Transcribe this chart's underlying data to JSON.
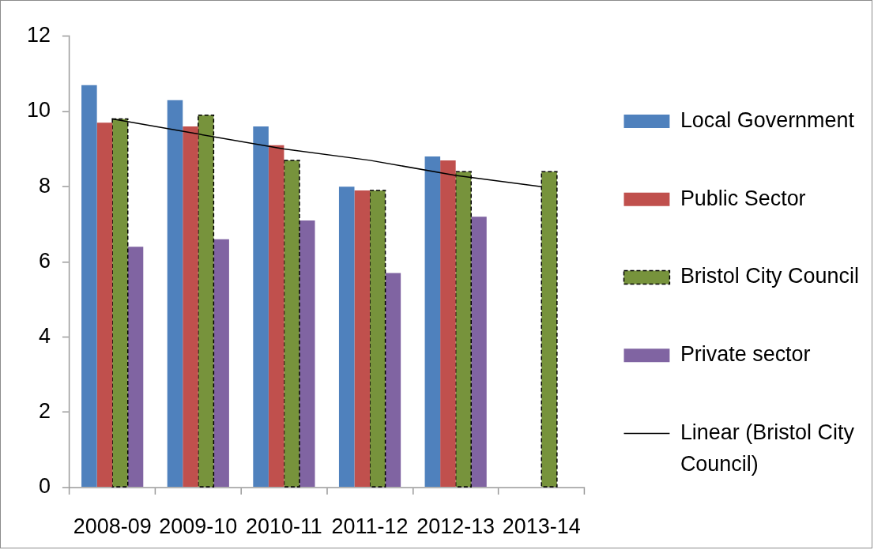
{
  "chart_data": {
    "type": "bar",
    "categories": [
      "2008-09",
      "2009-10",
      "2010-11",
      "2011-12",
      "2012-13",
      "2013-14"
    ],
    "series": [
      {
        "name": "Local Government",
        "color": "#4f81bd",
        "values": [
          10.7,
          10.3,
          9.6,
          8.0,
          8.8,
          null
        ]
      },
      {
        "name": "Public Sector",
        "color": "#c0504d",
        "values": [
          9.7,
          9.6,
          9.1,
          7.9,
          8.7,
          null
        ]
      },
      {
        "name": "Bristol City Council",
        "color": "#77933c",
        "line_style": "dashed",
        "values": [
          9.8,
          9.9,
          8.7,
          7.9,
          8.4,
          8.4
        ]
      },
      {
        "name": "Private sector",
        "color": "#8064a2",
        "values": [
          6.4,
          6.6,
          7.1,
          5.7,
          7.2,
          null
        ]
      },
      {
        "name": "Linear (Bristol City Council)",
        "type": "line",
        "color": "#000000",
        "values": [
          9.8,
          9.4,
          9.0,
          8.7,
          8.3,
          8.0
        ]
      }
    ],
    "ylim": [
      0,
      12
    ],
    "yticks": [
      0,
      2,
      4,
      6,
      8,
      10,
      12
    ],
    "grid": false,
    "legend": "right",
    "marker": "none"
  }
}
